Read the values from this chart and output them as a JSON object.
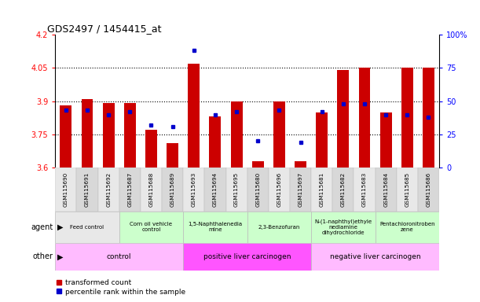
{
  "title": "GDS2497 / 1454415_at",
  "samples": [
    "GSM115690",
    "GSM115691",
    "GSM115692",
    "GSM115687",
    "GSM115688",
    "GSM115689",
    "GSM115693",
    "GSM115694",
    "GSM115695",
    "GSM115680",
    "GSM115696",
    "GSM115697",
    "GSM115681",
    "GSM115682",
    "GSM115683",
    "GSM115684",
    "GSM115685",
    "GSM115686"
  ],
  "transformed_count": [
    3.88,
    3.91,
    3.89,
    3.89,
    3.77,
    3.71,
    4.07,
    3.83,
    3.9,
    3.63,
    3.9,
    3.63,
    3.85,
    4.04,
    4.05,
    3.85,
    4.05,
    4.05
  ],
  "percentile_rank": [
    43,
    43,
    40,
    42,
    32,
    31,
    88,
    40,
    42,
    20,
    43,
    19,
    42,
    48,
    48,
    40,
    40,
    38
  ],
  "ylim_left": [
    3.6,
    4.2
  ],
  "ylim_right": [
    0,
    100
  ],
  "yticks_left": [
    3.6,
    3.75,
    3.9,
    4.05,
    4.2
  ],
  "yticks_right": [
    0,
    25,
    50,
    75,
    100
  ],
  "hlines": [
    3.75,
    3.9,
    4.05
  ],
  "bar_color": "#cc0000",
  "dot_color": "#0000cc",
  "bar_base": 3.6,
  "chart_bg": "#ffffff",
  "agent_groups": [
    {
      "label": "Feed control",
      "start": 0,
      "end": 3,
      "color": "#e8e8e8"
    },
    {
      "label": "Corn oil vehicle\ncontrol",
      "start": 3,
      "end": 6,
      "color": "#ccffcc"
    },
    {
      "label": "1,5-Naphthalenedia\nmine",
      "start": 6,
      "end": 9,
      "color": "#ccffcc"
    },
    {
      "label": "2,3-Benzofuran",
      "start": 9,
      "end": 12,
      "color": "#ccffcc"
    },
    {
      "label": "N-(1-naphthyl)ethyle\nnediamine\ndihydrochloride",
      "start": 12,
      "end": 15,
      "color": "#ccffcc"
    },
    {
      "label": "Pentachloronitroben\nzene",
      "start": 15,
      "end": 18,
      "color": "#ccffcc"
    }
  ],
  "other_groups": [
    {
      "label": "control",
      "start": 0,
      "end": 6,
      "color": "#ffbbff"
    },
    {
      "label": "positive liver carcinogen",
      "start": 6,
      "end": 12,
      "color": "#ff55ff"
    },
    {
      "label": "negative liver carcinogen",
      "start": 12,
      "end": 18,
      "color": "#ffbbff"
    }
  ],
  "sample_bg_even": "#e8e8e8",
  "sample_bg_odd": "#d8d8d8",
  "legend_red": "transformed count",
  "legend_blue": "percentile rank within the sample",
  "agent_label": "agent",
  "other_label": "other"
}
